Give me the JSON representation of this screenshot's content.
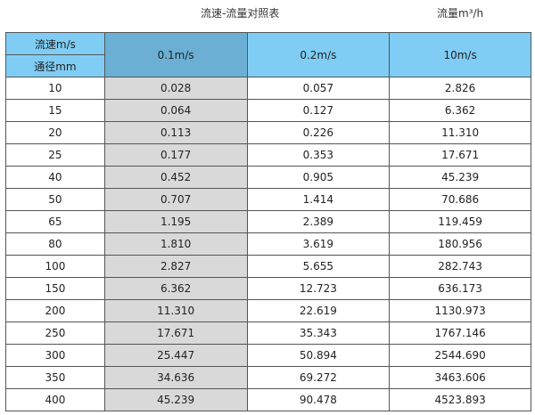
{
  "title": "流速-流量对照表",
  "unit": "流量m³/h",
  "header": {
    "velocity_label": "流速m/s",
    "diameter_label": "通径mm",
    "columns": [
      "0.1m/s",
      "0.2m/s",
      "10m/s"
    ]
  },
  "colors": {
    "header": "#7fcdf4",
    "header_highlight": "#6bb0d4",
    "column_highlight": "#d9d9d9"
  },
  "rows": [
    [
      "10",
      "0.028",
      "0.057",
      "2.826"
    ],
    [
      "15",
      "0.064",
      "0.127",
      "6.362"
    ],
    [
      "20",
      "0.113",
      "0.226",
      "11.310"
    ],
    [
      "25",
      "0.177",
      "0.353",
      "17.671"
    ],
    [
      "40",
      "0.452",
      "0.905",
      "45.239"
    ],
    [
      "50",
      "0.707",
      "1.414",
      "70.686"
    ],
    [
      "65",
      "1.195",
      "2.389",
      "119.459"
    ],
    [
      "80",
      "1.810",
      "3.619",
      "180.956"
    ],
    [
      "100",
      "2.827",
      "5.655",
      "282.743"
    ],
    [
      "150",
      "6.362",
      "12.723",
      "636.173"
    ],
    [
      "200",
      "11.310",
      "22.619",
      "1130.973"
    ],
    [
      "250",
      "17.671",
      "35.343",
      "1767.146"
    ],
    [
      "300",
      "25.447",
      "50.894",
      "2544.690"
    ],
    [
      "350",
      "34.636",
      "69.272",
      "3463.606"
    ],
    [
      "400",
      "45.239",
      "90.478",
      "4523.893"
    ]
  ]
}
